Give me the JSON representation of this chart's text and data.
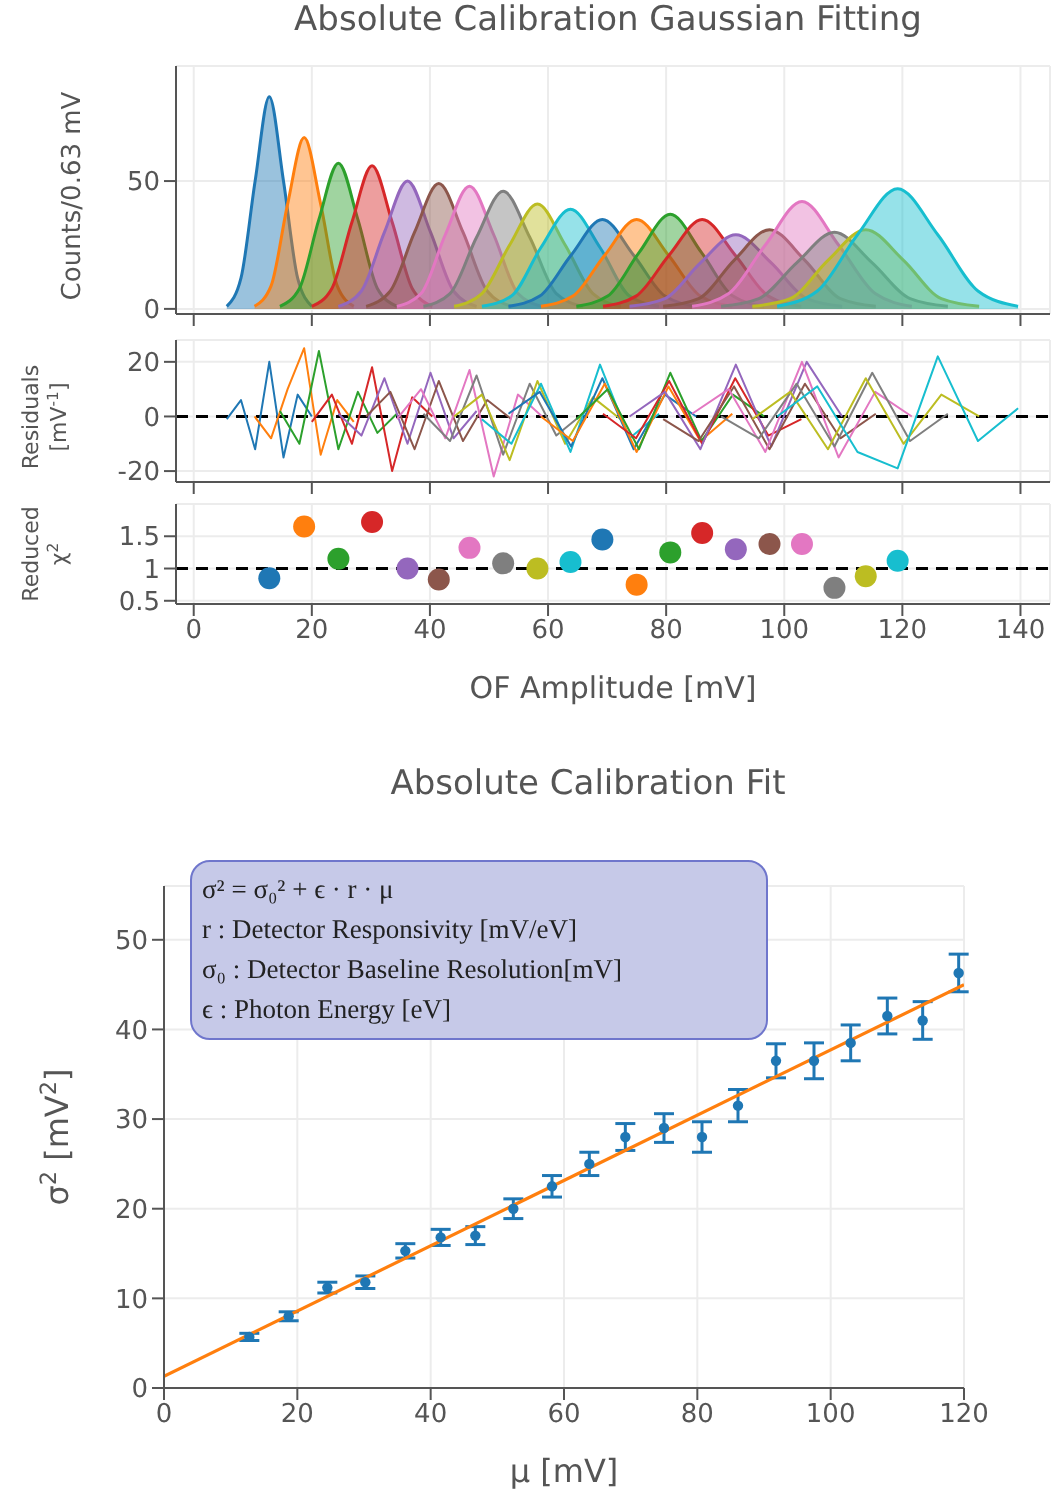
{
  "chart_data": [
    {
      "type": "area",
      "title": "Absolute Calibration Gaussian Fitting",
      "ylabel": "Counts/0.63 mV",
      "xlim": [
        -3,
        145
      ],
      "xticks": [
        0,
        20,
        40,
        60,
        80,
        100,
        120,
        140
      ],
      "ylim": [
        -2,
        95
      ],
      "yticks": [
        0,
        50
      ],
      "grid": true,
      "tick_labels": "y",
      "series": [
        {
          "color": "#1f77b4",
          "x": [
            5.6,
            8.0,
            10.4,
            12.8,
            15.2,
            17.6,
            20.0
          ],
          "values": [
            1,
            12,
            50,
            83,
            50,
            12,
            1
          ]
        },
        {
          "color": "#ff7f0e",
          "x": [
            10.3,
            13.1,
            15.9,
            18.7,
            21.5,
            24.3,
            27.1
          ],
          "values": [
            1,
            9,
            41,
            67,
            41,
            9,
            1
          ]
        },
        {
          "color": "#2ca02c",
          "x": [
            14.6,
            17.9,
            21.2,
            24.5,
            27.8,
            31.1,
            34.4
          ],
          "values": [
            1,
            8,
            35,
            57,
            35,
            8,
            1
          ]
        },
        {
          "color": "#d62728",
          "x": [
            20.0,
            23.4,
            26.8,
            30.2,
            33.6,
            37.0,
            40.4
          ],
          "values": [
            1,
            8,
            34,
            56,
            34,
            8,
            1
          ]
        },
        {
          "color": "#9467bd",
          "x": [
            24.5,
            28.4,
            32.3,
            36.2,
            40.1,
            44.0,
            47.9
          ],
          "values": [
            1,
            7,
            30,
            50,
            30,
            7,
            1
          ]
        },
        {
          "color": "#8c564b",
          "x": [
            29.2,
            33.3,
            37.4,
            41.5,
            45.6,
            49.7,
            53.8
          ],
          "values": [
            1,
            7,
            30,
            49,
            30,
            7,
            1
          ]
        },
        {
          "color": "#e377c2",
          "x": [
            34.4,
            38.5,
            42.6,
            46.7,
            50.8,
            54.9,
            59.0
          ],
          "values": [
            1,
            6,
            29,
            48,
            29,
            6,
            1
          ]
        },
        {
          "color": "#7f7f7f",
          "x": [
            38.9,
            43.4,
            47.9,
            52.4,
            56.9,
            61.4,
            65.9
          ],
          "values": [
            1,
            6,
            28,
            46,
            28,
            6,
            1
          ]
        },
        {
          "color": "#bcbd22",
          "x": [
            44.1,
            48.8,
            53.5,
            58.2,
            62.9,
            67.6,
            72.3
          ],
          "values": [
            1,
            6,
            25,
            41,
            25,
            6,
            1
          ]
        },
        {
          "color": "#17becf",
          "x": [
            48.8,
            53.8,
            58.8,
            63.8,
            68.8,
            73.8,
            78.8
          ],
          "values": [
            1,
            5,
            24,
            39,
            24,
            5,
            1
          ]
        },
        {
          "color": "#1f77b4",
          "x": [
            53.3,
            58.6,
            63.9,
            69.2,
            74.5,
            79.8,
            85.1
          ],
          "values": [
            1,
            5,
            21,
            35,
            21,
            5,
            1
          ]
        },
        {
          "color": "#ff7f0e",
          "x": [
            58.8,
            64.2,
            69.6,
            75.0,
            80.4,
            85.8,
            91.2
          ],
          "values": [
            1,
            5,
            21,
            35,
            21,
            5,
            1
          ]
        },
        {
          "color": "#2ca02c",
          "x": [
            64.8,
            70.1,
            75.4,
            80.7,
            86.0,
            91.3,
            96.6
          ],
          "values": [
            1,
            5,
            22,
            37,
            22,
            5,
            1
          ]
        },
        {
          "color": "#d62728",
          "x": [
            69.3,
            74.9,
            80.5,
            86.1,
            91.7,
            97.3,
            102.9
          ],
          "values": [
            1,
            5,
            21,
            35,
            21,
            5,
            1
          ]
        },
        {
          "color": "#9467bd",
          "x": [
            73.8,
            79.8,
            85.8,
            91.8,
            97.8,
            103.8,
            109.8
          ],
          "values": [
            1,
            4,
            18,
            29,
            18,
            4,
            1
          ]
        },
        {
          "color": "#8c564b",
          "x": [
            79.5,
            85.5,
            91.5,
            97.5,
            103.5,
            109.5,
            115.5
          ],
          "values": [
            1,
            4,
            19,
            31,
            19,
            4,
            1
          ]
        },
        {
          "color": "#e377c2",
          "x": [
            84.4,
            90.6,
            96.8,
            103.0,
            109.2,
            115.4,
            121.6
          ],
          "values": [
            1,
            6,
            25,
            42,
            25,
            6,
            1
          ]
        },
        {
          "color": "#7f7f7f",
          "x": [
            89.3,
            95.7,
            102.1,
            108.5,
            114.9,
            121.3,
            127.7
          ],
          "values": [
            1,
            4,
            18,
            30,
            18,
            4,
            1
          ]
        },
        {
          "color": "#bcbd22",
          "x": [
            94.6,
            101.0,
            107.4,
            113.8,
            120.2,
            126.6,
            133.0
          ],
          "values": [
            1,
            4,
            19,
            31,
            19,
            4,
            1
          ]
        },
        {
          "color": "#17becf",
          "x": [
            98.8,
            105.6,
            112.4,
            119.2,
            126.0,
            132.8,
            139.6
          ],
          "values": [
            1,
            7,
            29,
            47,
            29,
            7,
            1
          ]
        }
      ]
    },
    {
      "type": "line",
      "ylabel": "Residuals\n[mV$^{-1}$]",
      "xlim": [
        -3,
        145
      ],
      "xticks": [
        0,
        20,
        40,
        60,
        80,
        100,
        120,
        140
      ],
      "ylim": [
        -24,
        28
      ],
      "yticks": [
        -20,
        0,
        20
      ],
      "grid": true,
      "tick_labels": "y",
      "marker": "none",
      "ref_lines": [
        {
          "axis": "y",
          "value": 0,
          "color": "#000000",
          "line_style": "dashed"
        }
      ],
      "series": [
        {
          "color": "#1f77b4",
          "x": [
            5.6,
            8.0,
            10.4,
            12.8,
            15.2,
            17.6,
            20.0
          ],
          "values": [
            -1,
            6,
            -12,
            20,
            -15,
            8,
            0
          ]
        },
        {
          "color": "#ff7f0e",
          "x": [
            10.3,
            13.1,
            15.9,
            18.7,
            21.5,
            24.3,
            27.1
          ],
          "values": [
            0,
            -8,
            10,
            25,
            -14,
            6,
            -2
          ]
        },
        {
          "color": "#2ca02c",
          "x": [
            14.6,
            17.9,
            21.2,
            24.5,
            27.8,
            31.1,
            34.4
          ],
          "values": [
            2,
            -10,
            24,
            -12,
            9,
            -6,
            1
          ]
        },
        {
          "color": "#d62728",
          "x": [
            20.0,
            23.4,
            26.8,
            30.2,
            33.6,
            37.0,
            40.4
          ],
          "values": [
            -2,
            8,
            -10,
            18,
            -20,
            7,
            0
          ]
        },
        {
          "color": "#9467bd",
          "x": [
            24.5,
            28.4,
            32.3,
            36.2,
            40.1,
            44.0,
            47.9
          ],
          "values": [
            1,
            -7,
            14,
            -10,
            16,
            -8,
            2
          ]
        },
        {
          "color": "#8c564b",
          "x": [
            29.2,
            33.3,
            37.4,
            41.5,
            45.6,
            49.7,
            53.8
          ],
          "values": [
            0,
            9,
            -12,
            13,
            -9,
            6,
            -1
          ]
        },
        {
          "color": "#e377c2",
          "x": [
            34.4,
            38.5,
            42.6,
            46.7,
            50.8,
            54.9,
            59.0
          ],
          "values": [
            -1,
            10,
            -8,
            17,
            -22,
            8,
            0
          ]
        },
        {
          "color": "#7f7f7f",
          "x": [
            38.9,
            43.4,
            47.9,
            52.4,
            56.9,
            61.4,
            65.9
          ],
          "values": [
            1,
            -9,
            15,
            -14,
            12,
            -7,
            1
          ]
        },
        {
          "color": "#bcbd22",
          "x": [
            44.1,
            48.8,
            53.5,
            58.2,
            62.9,
            67.6,
            72.3
          ],
          "values": [
            0,
            8,
            -16,
            13,
            -10,
            7,
            -1
          ]
        },
        {
          "color": "#17becf",
          "x": [
            48.8,
            53.8,
            58.8,
            63.8,
            68.8,
            73.8,
            78.8
          ],
          "values": [
            -1,
            -10,
            12,
            -13,
            19,
            -8,
            1
          ]
        },
        {
          "color": "#1f77b4",
          "x": [
            53.3,
            58.6,
            63.9,
            69.2,
            74.5,
            79.8,
            85.1
          ],
          "values": [
            1,
            9,
            -11,
            14,
            -12,
            8,
            0
          ]
        },
        {
          "color": "#ff7f0e",
          "x": [
            58.8,
            64.2,
            69.6,
            75.0,
            80.4,
            85.8,
            91.2
          ],
          "values": [
            0,
            -9,
            12,
            -13,
            11,
            -9,
            1
          ]
        },
        {
          "color": "#2ca02c",
          "x": [
            64.8,
            70.1,
            75.4,
            80.7,
            86.0,
            91.3,
            96.6
          ],
          "values": [
            -1,
            10,
            -12,
            16,
            -9,
            8,
            0
          ]
        },
        {
          "color": "#d62728",
          "x": [
            69.3,
            74.9,
            80.5,
            86.1,
            91.7,
            97.3,
            102.9
          ],
          "values": [
            1,
            -8,
            13,
            -10,
            14,
            -7,
            -1
          ]
        },
        {
          "color": "#9467bd",
          "x": [
            73.8,
            79.8,
            85.8,
            91.8,
            97.8,
            103.8,
            109.8
          ],
          "values": [
            0,
            9,
            -12,
            19,
            -11,
            20,
            0
          ]
        },
        {
          "color": "#8c564b",
          "x": [
            79.5,
            85.5,
            91.5,
            97.5,
            103.5,
            109.5,
            115.5
          ],
          "values": [
            -1,
            -9,
            11,
            -12,
            12,
            -8,
            1
          ]
        },
        {
          "color": "#e377c2",
          "x": [
            84.4,
            90.6,
            96.8,
            103.0,
            109.2,
            115.4,
            121.6
          ],
          "values": [
            1,
            10,
            -13,
            20,
            -15,
            9,
            0
          ]
        },
        {
          "color": "#7f7f7f",
          "x": [
            89.3,
            95.7,
            102.1,
            108.5,
            114.9,
            121.3,
            127.7
          ],
          "values": [
            0,
            -8,
            12,
            -11,
            16,
            -9,
            1
          ]
        },
        {
          "color": "#bcbd22",
          "x": [
            94.6,
            101.0,
            107.4,
            113.8,
            120.2,
            126.6,
            133.0
          ],
          "values": [
            -1,
            9,
            -12,
            14,
            -10,
            8,
            0
          ]
        },
        {
          "color": "#17becf",
          "x": [
            98.8,
            105.6,
            112.4,
            119.2,
            126.0,
            132.8,
            139.6
          ],
          "values": [
            0,
            11,
            -13,
            -19,
            22,
            -9,
            3
          ]
        }
      ]
    },
    {
      "type": "scatter",
      "ylabel": "Reduced\nχ$^{2}$",
      "xlabel": "OF Amplitude [mV]",
      "xlim": [
        -3,
        145
      ],
      "xticks": [
        0,
        20,
        40,
        60,
        80,
        100,
        120,
        140
      ],
      "ylim": [
        0.45,
        2.0
      ],
      "yticks": [
        0.5,
        1,
        1.5
      ],
      "grid": true,
      "marker": "circle",
      "ref_lines": [
        {
          "axis": "y",
          "value": 1,
          "color": "#000000",
          "line_style": "dashed"
        }
      ],
      "series": [
        {
          "x": [
            12.8,
            18.7,
            24.5,
            30.2,
            36.2,
            41.5,
            46.7,
            52.4,
            58.2,
            63.8,
            69.2,
            75.0,
            80.7,
            86.1,
            91.8,
            97.5,
            103.0,
            108.5,
            113.8,
            119.2
          ],
          "values": [
            0.85,
            1.65,
            1.15,
            1.72,
            1.0,
            0.83,
            1.32,
            1.08,
            1.0,
            1.1,
            1.45,
            0.75,
            1.25,
            1.55,
            1.3,
            1.38,
            1.38,
            0.7,
            0.88,
            1.12
          ],
          "colors": [
            "#1f77b4",
            "#ff7f0e",
            "#2ca02c",
            "#d62728",
            "#9467bd",
            "#8c564b",
            "#e377c2",
            "#7f7f7f",
            "#bcbd22",
            "#17becf",
            "#1f77b4",
            "#ff7f0e",
            "#2ca02c",
            "#d62728",
            "#9467bd",
            "#8c564b",
            "#e377c2",
            "#7f7f7f",
            "#bcbd22",
            "#17becf"
          ]
        }
      ]
    },
    {
      "type": "scatter",
      "title": "Absolute Calibration Fit",
      "xlabel": "μ [mV]",
      "ylabel": "σ$^{2}$ [mV$^{2}$]",
      "xlim": [
        0,
        120
      ],
      "xticks": [
        0,
        20,
        40,
        60,
        80,
        100,
        120
      ],
      "ylim": [
        0,
        56
      ],
      "yticks": [
        0,
        10,
        20,
        30,
        40,
        50
      ],
      "grid": true,
      "annotations": [
        "σ² = σ₀² + ϵ · r · μ",
        "r : Detector Responsivity [mV/eV]",
        "σ₀ : Detector Baseline Resolution[mV]",
        "ϵ : Photon Energy [eV]"
      ],
      "series": [
        {
          "color": "#1f77b4",
          "marker": "circle",
          "x": [
            12.8,
            18.7,
            24.5,
            30.2,
            36.2,
            41.5,
            46.7,
            52.4,
            58.2,
            63.8,
            69.2,
            75.0,
            80.7,
            86.1,
            91.8,
            97.5,
            103.0,
            108.5,
            113.8,
            119.2
          ],
          "values": [
            5.7,
            8,
            11.2,
            11.8,
            15.3,
            16.8,
            17,
            20,
            22.5,
            25,
            28,
            29,
            28,
            31.5,
            36.5,
            36.5,
            38.5,
            41.5,
            41,
            46.3
          ],
          "errors": [
            0.4,
            0.5,
            0.6,
            0.7,
            0.8,
            0.9,
            1.0,
            1.1,
            1.2,
            1.3,
            1.5,
            1.6,
            1.7,
            1.8,
            1.9,
            2.0,
            2.0,
            2.0,
            2.1,
            2.1
          ]
        },
        {
          "type": "line",
          "marker": "none",
          "color": "#ff7f0e",
          "x": [
            0,
            120
          ],
          "values": [
            1.3,
            45.0
          ]
        }
      ]
    }
  ]
}
